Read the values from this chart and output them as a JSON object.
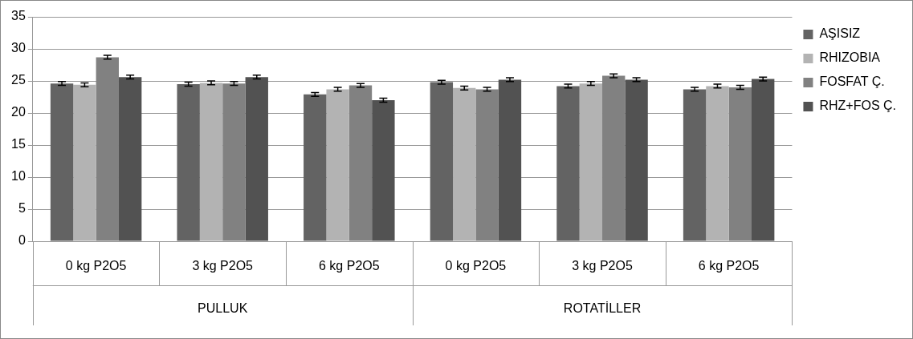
{
  "chart_data": {
    "type": "bar",
    "categories": [
      "0 kg P2O5",
      "3 kg P2O5",
      "6 kg P2O5",
      "0 kg P2O5",
      "3 kg P2O5",
      "6 kg P2O5"
    ],
    "series": [
      {
        "name": "AŞISIZ",
        "color": "#636363",
        "values": [
          24.6,
          24.5,
          22.9,
          24.8,
          24.2,
          23.7
        ],
        "errors": [
          0.3,
          0.3,
          0.3,
          0.3,
          0.3,
          0.3
        ]
      },
      {
        "name": "RHIZOBIA",
        "color": "#b3b3b3",
        "values": [
          24.4,
          24.7,
          23.7,
          23.9,
          24.6,
          24.2
        ],
        "errors": [
          0.3,
          0.3,
          0.3,
          0.3,
          0.3,
          0.3
        ]
      },
      {
        "name": "FOSFAT Ç.",
        "color": "#818181",
        "values": [
          28.7,
          24.6,
          24.3,
          23.7,
          25.8,
          24.0
        ],
        "errors": [
          0.3,
          0.3,
          0.3,
          0.3,
          0.3,
          0.3
        ]
      },
      {
        "name": "RHZ+FOS Ç.",
        "color": "#525252",
        "values": [
          25.6,
          25.6,
          22.0,
          25.2,
          25.2,
          25.3
        ],
        "errors": [
          0.3,
          0.3,
          0.3,
          0.3,
          0.3,
          0.3
        ]
      }
    ],
    "annotations": [
      "PULLUK",
      "ROTATİLLER"
    ],
    "ylim": [
      0,
      35
    ],
    "yticks": [
      0,
      5,
      10,
      15,
      20,
      25,
      30,
      35
    ],
    "grid": "y",
    "legend": "right"
  }
}
